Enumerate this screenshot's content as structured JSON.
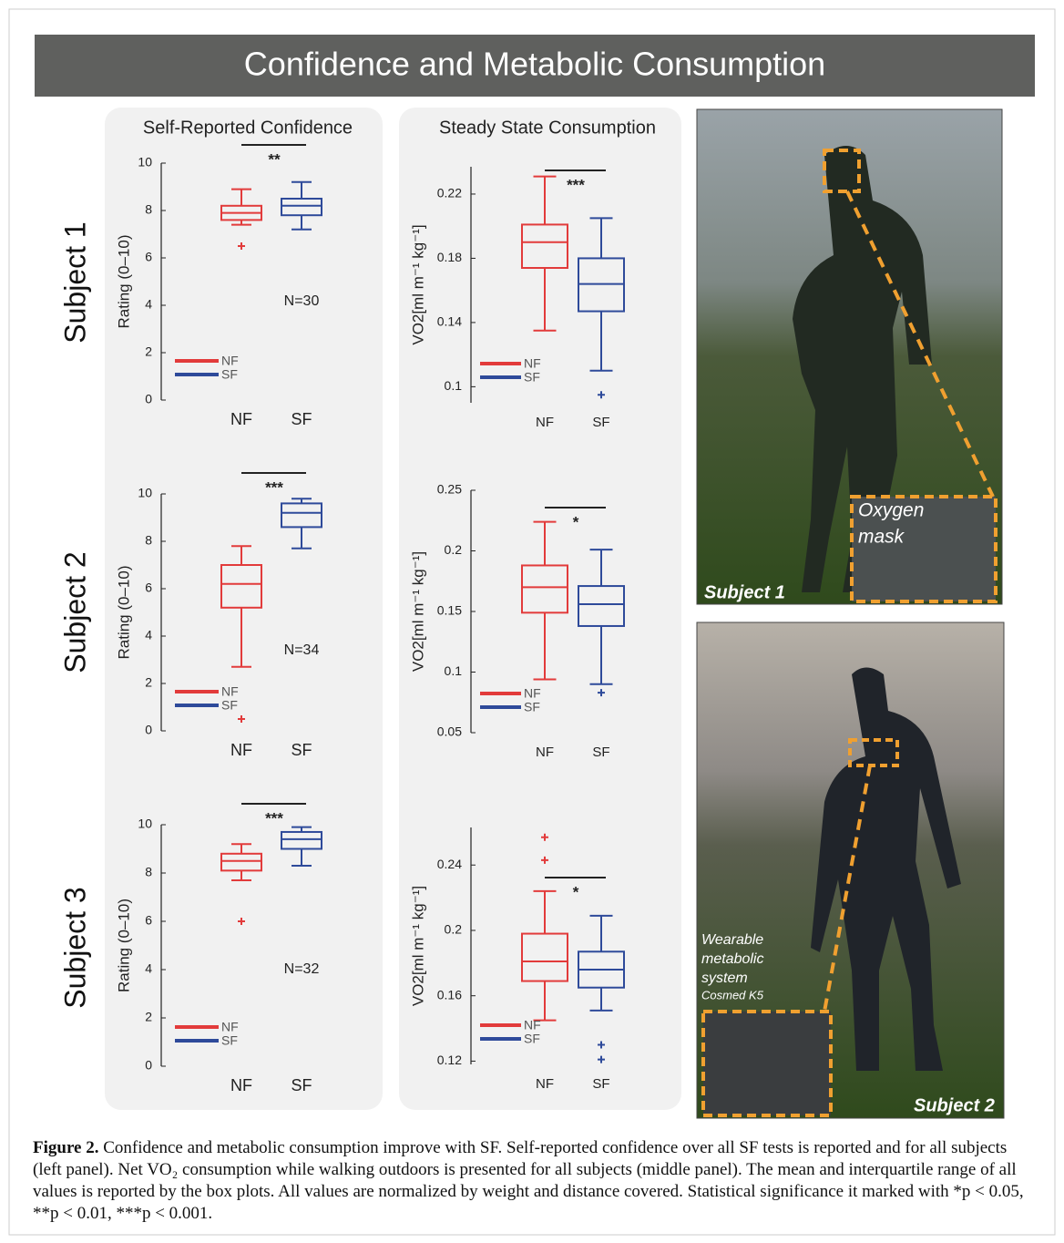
{
  "header": {
    "title": "Confidence and Metabolic Consumption"
  },
  "columns": [
    "Self-Reported Confidence",
    "Steady State Consumption"
  ],
  "rows": [
    "Subject 1",
    "Subject 2",
    "Subject 3"
  ],
  "chart_data": [
    {
      "type": "box",
      "ylabel": "Rating (0–10)",
      "categories": [
        "NF",
        "SF"
      ],
      "ylim": [
        0,
        10
      ],
      "yticks": [
        0,
        2,
        4,
        6,
        8,
        10
      ],
      "significance": "**",
      "n_label": "N=30",
      "series": [
        {
          "name": "NF",
          "color": "#e23b3b",
          "whislo": 7.4,
          "q1": 7.6,
          "med": 7.9,
          "q3": 8.2,
          "whishi": 8.9,
          "fliers": [
            6.5
          ]
        },
        {
          "name": "SF",
          "color": "#2e4a9a",
          "whislo": 7.2,
          "q1": 7.8,
          "med": 8.2,
          "q3": 8.5,
          "whishi": 9.2,
          "fliers": []
        }
      ]
    },
    {
      "type": "box",
      "ylabel": "VO2[ml m⁻¹ kg⁻¹]",
      "categories": [
        "NF",
        "SF"
      ],
      "ylim": [
        0.09,
        0.237
      ],
      "yticks": [
        0.1,
        0.14,
        0.18,
        0.22
      ],
      "significance": "***",
      "series": [
        {
          "name": "NF",
          "color": "#e23b3b",
          "whislo": 0.135,
          "q1": 0.174,
          "med": 0.19,
          "q3": 0.201,
          "whishi": 0.231,
          "fliers": []
        },
        {
          "name": "SF",
          "color": "#2e4a9a",
          "whislo": 0.11,
          "q1": 0.147,
          "med": 0.164,
          "q3": 0.18,
          "whishi": 0.205,
          "fliers": [
            0.095
          ]
        }
      ]
    },
    {
      "type": "box",
      "ylabel": "Rating (0–10)",
      "categories": [
        "NF",
        "SF"
      ],
      "ylim": [
        0,
        10
      ],
      "yticks": [
        0,
        2,
        4,
        6,
        8,
        10
      ],
      "significance": "***",
      "n_label": "N=34",
      "series": [
        {
          "name": "NF",
          "color": "#e23b3b",
          "whislo": 2.7,
          "q1": 5.2,
          "med": 6.2,
          "q3": 7.0,
          "whishi": 7.8,
          "fliers": [
            0.5
          ]
        },
        {
          "name": "SF",
          "color": "#2e4a9a",
          "whislo": 7.7,
          "q1": 8.6,
          "med": 9.2,
          "q3": 9.6,
          "whishi": 9.8,
          "fliers": []
        }
      ]
    },
    {
      "type": "box",
      "ylabel": "VO2[ml m⁻¹ kg⁻¹]",
      "categories": [
        "NF",
        "SF"
      ],
      "ylim": [
        0.05,
        0.25
      ],
      "yticks": [
        0.05,
        0.1,
        0.15,
        0.2,
        0.25
      ],
      "significance": "*",
      "series": [
        {
          "name": "NF",
          "color": "#e23b3b",
          "whislo": 0.094,
          "q1": 0.149,
          "med": 0.17,
          "q3": 0.188,
          "whishi": 0.224,
          "fliers": []
        },
        {
          "name": "SF",
          "color": "#2e4a9a",
          "whislo": 0.09,
          "q1": 0.138,
          "med": 0.156,
          "q3": 0.171,
          "whishi": 0.201,
          "fliers": [
            0.083
          ]
        }
      ]
    },
    {
      "type": "box",
      "ylabel": "Rating (0–10)",
      "categories": [
        "NF",
        "SF"
      ],
      "ylim": [
        0,
        10
      ],
      "yticks": [
        0,
        2,
        4,
        6,
        8,
        10
      ],
      "significance": "***",
      "n_label": "N=32",
      "series": [
        {
          "name": "NF",
          "color": "#e23b3b",
          "whislo": 7.7,
          "q1": 8.1,
          "med": 8.5,
          "q3": 8.8,
          "whishi": 9.2,
          "fliers": [
            6.0
          ]
        },
        {
          "name": "SF",
          "color": "#2e4a9a",
          "whislo": 8.3,
          "q1": 9.0,
          "med": 9.4,
          "q3": 9.7,
          "whishi": 9.9,
          "fliers": []
        }
      ]
    },
    {
      "type": "box",
      "ylabel": "VO2[ml m⁻¹ kg⁻¹]",
      "categories": [
        "NF",
        "SF"
      ],
      "ylim": [
        0.118,
        0.263
      ],
      "yticks": [
        0.12,
        0.16,
        0.2,
        0.24
      ],
      "significance": "*",
      "series": [
        {
          "name": "NF",
          "color": "#e23b3b",
          "whislo": 0.145,
          "q1": 0.169,
          "med": 0.181,
          "q3": 0.198,
          "whishi": 0.224,
          "fliers": [
            0.257,
            0.243
          ]
        },
        {
          "name": "SF",
          "color": "#2e4a9a",
          "whislo": 0.151,
          "q1": 0.165,
          "med": 0.176,
          "q3": 0.187,
          "whishi": 0.209,
          "fliers": [
            0.13,
            0.121
          ]
        }
      ]
    }
  ],
  "photos": [
    {
      "label": "Subject 1",
      "inset": [
        "Oxygen",
        "mask"
      ]
    },
    {
      "label": "Subject 2",
      "inset": [
        "Wearable",
        "metabolic",
        "system",
        "Cosmed K5"
      ]
    }
  ],
  "caption": {
    "label": "Figure 2.",
    "text": "Confidence and metabolic consumption improve with SF. Self-reported confidence over all SF tests is reported and for all subjects (left panel). Net VO₂ consumption while walking outdoors is presented for all subjects (middle panel). The mean and interquartile range of all values is reported by the box plots. All values are normalized by weight and distance covered. Statistical significance it marked with *p < 0.05, **p < 0.01, ***p < 0.001."
  }
}
